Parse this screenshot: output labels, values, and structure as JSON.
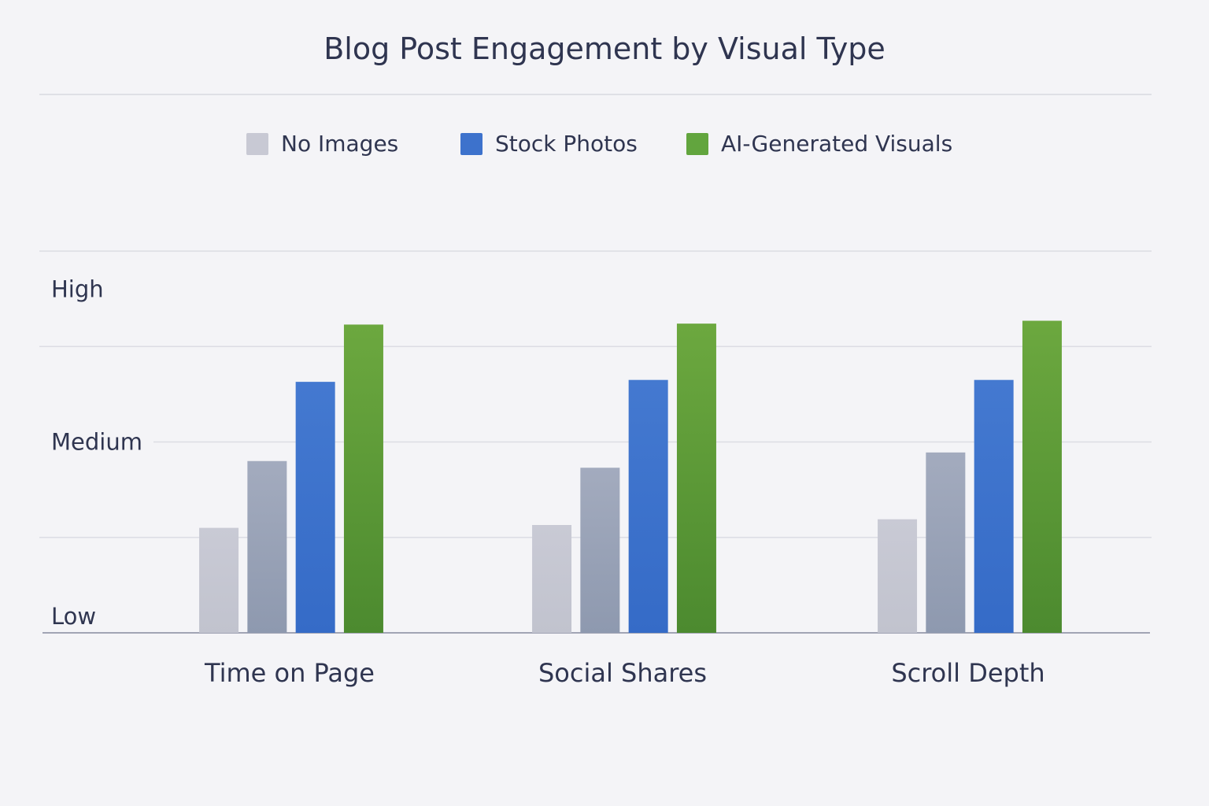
{
  "chart_data": {
    "type": "bar",
    "title": "Blog Post Engagement by Visual Type",
    "xlabel": "",
    "ylabel": "",
    "categories": [
      "Time on Page",
      "Social Shares",
      "Scroll Depth"
    ],
    "ylim": [
      0,
      4
    ],
    "yticks": [
      {
        "label": "Low",
        "value": 0
      },
      {
        "label": "Medium",
        "value": 2
      },
      {
        "label": "High",
        "value": 3.6
      }
    ],
    "grid": true,
    "legend_position": "top-center",
    "series": [
      {
        "name": "No Images",
        "color": "#c5c6d1",
        "values": [
          1.1,
          1.13,
          1.19
        ]
      },
      {
        "color": "#98a2b6",
        "values": [
          1.8,
          1.73,
          1.89
        ]
      },
      {
        "name": "Stock Photos",
        "color": "#3d72cc",
        "values": [
          2.63,
          2.65,
          2.65
        ]
      },
      {
        "name": "AI-Generated Visuals",
        "color": "#5c9c3a",
        "values": [
          3.23,
          3.24,
          3.27
        ]
      }
    ]
  }
}
